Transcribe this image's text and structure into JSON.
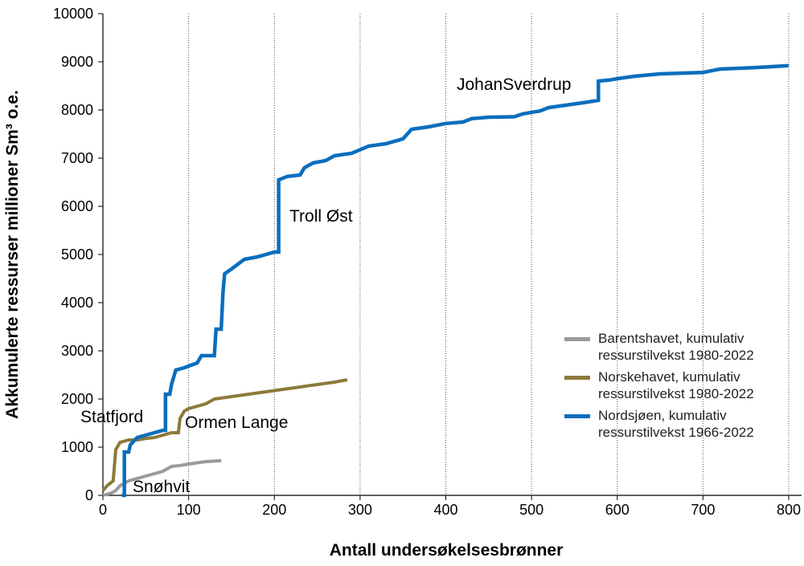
{
  "chart_data": {
    "type": "line",
    "xlabel": "Antall undersøkelsesbrønner",
    "ylabel": "Akkumulerte ressurser millioner Sm³ o.e.",
    "xlim": [
      0,
      815
    ],
    "ylim": [
      0,
      10000
    ],
    "xticks": [
      0,
      100,
      200,
      300,
      400,
      500,
      600,
      700,
      800
    ],
    "yticks": [
      0,
      1000,
      2000,
      3000,
      4000,
      5000,
      6000,
      7000,
      8000,
      9000,
      10000
    ],
    "grid": "x",
    "legend": "lower right",
    "annotations": [
      "Statfjord",
      "Ormen Lange",
      "Troll Øst",
      "JohanSverdrup",
      "Snøhvit"
    ],
    "series": [
      {
        "name": "Barentshavet, kumulativ ressurstilvekst 1980-2022",
        "color": "#9a9a9a",
        "x": [
          0,
          10,
          15,
          20,
          30,
          40,
          50,
          60,
          70,
          80,
          90,
          100,
          120,
          138
        ],
        "values": [
          0,
          50,
          100,
          200,
          300,
          350,
          400,
          450,
          500,
          600,
          620,
          650,
          700,
          720
        ]
      },
      {
        "name": "Norskehavet, kumulativ ressurstilvekst 1980-2022",
        "color": "#8c7a3a",
        "x": [
          0,
          5,
          12,
          15,
          20,
          30,
          40,
          50,
          60,
          70,
          80,
          88,
          90,
          95,
          100,
          110,
          120,
          130,
          150,
          170,
          190,
          210,
          230,
          250,
          270,
          285
        ],
        "values": [
          100,
          200,
          300,
          950,
          1100,
          1150,
          1150,
          1180,
          1200,
          1250,
          1300,
          1300,
          1600,
          1750,
          1800,
          1850,
          1900,
          2000,
          2050,
          2100,
          2150,
          2200,
          2250,
          2300,
          2350,
          2400
        ]
      },
      {
        "name": "Nordsjøen, kumulativ ressurstilvekst 1966-2022",
        "color": "#0a6ebd",
        "x": [
          22,
          25,
          25,
          30,
          32,
          40,
          50,
          60,
          70,
          73,
          73,
          78,
          80,
          85,
          95,
          110,
          115,
          130,
          132,
          138,
          140,
          142,
          150,
          165,
          180,
          200,
          205,
          205,
          215,
          230,
          235,
          245,
          260,
          270,
          290,
          310,
          330,
          350,
          360,
          380,
          400,
          420,
          430,
          450,
          480,
          490,
          510,
          520,
          540,
          560,
          578,
          578,
          590,
          600,
          620,
          650,
          700,
          720,
          760,
          800
        ],
        "values": [
          0,
          0,
          900,
          900,
          1050,
          1200,
          1250,
          1300,
          1350,
          1350,
          2100,
          2100,
          2300,
          2600,
          2650,
          2750,
          2900,
          2900,
          3450,
          3450,
          4200,
          4600,
          4700,
          4900,
          4950,
          5050,
          5050,
          6550,
          6620,
          6650,
          6800,
          6900,
          6950,
          7050,
          7100,
          7250,
          7300,
          7400,
          7600,
          7650,
          7720,
          7750,
          7820,
          7850,
          7860,
          7920,
          7980,
          8050,
          8100,
          8150,
          8200,
          8600,
          8620,
          8650,
          8700,
          8750,
          8780,
          8850,
          8880,
          8920
        ]
      }
    ]
  }
}
